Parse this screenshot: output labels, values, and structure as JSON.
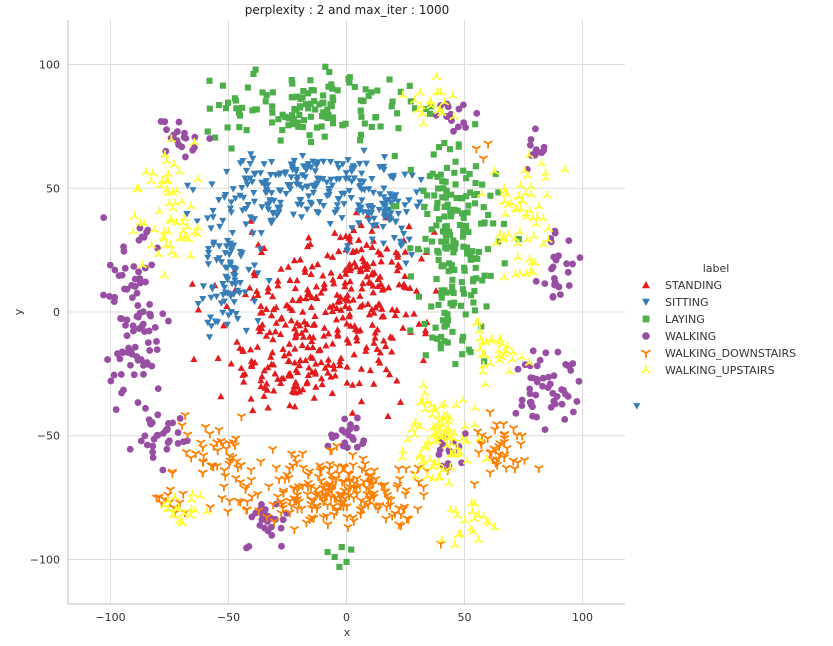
{
  "chart_data": {
    "type": "scatter",
    "title": "perplexity : 2 and max_iter : 1000",
    "xlabel": "x",
    "ylabel": "y",
    "xlim": [
      -118,
      118
    ],
    "ylim": [
      -118,
      118
    ],
    "xticks": [
      -100,
      -50,
      0,
      50,
      100
    ],
    "yticks": [
      -100,
      -50,
      0,
      50,
      100
    ],
    "xtick_labels": [
      "−100",
      "−50",
      "0",
      "50",
      "100"
    ],
    "ytick_labels": [
      "−100",
      "−50",
      "0",
      "50",
      "100"
    ],
    "grid": true,
    "legend": {
      "title": "label",
      "placement": "right",
      "entries": [
        "STANDING",
        "SITTING",
        "LAYING",
        "WALKING",
        "WALKING_DOWNSTAIRS",
        "WALKING_UPSTAIRS"
      ]
    },
    "series": [
      {
        "name": "STANDING",
        "marker": "triangle-up",
        "color": "#e41a1c",
        "clusters": [
          {
            "center": [
              -10,
              -3
            ],
            "spread": [
              38,
              28
            ],
            "n": 230
          },
          {
            "center": [
              10,
              15
            ],
            "spread": [
              20,
              20
            ],
            "n": 90
          },
          {
            "center": [
              -25,
              -25
            ],
            "spread": [
              22,
              14
            ],
            "n": 70
          }
        ],
        "outliers": []
      },
      {
        "name": "SITTING",
        "marker": "triangle-down",
        "color": "#377eb8",
        "clusters": [
          {
            "center": [
              -15,
              50
            ],
            "spread": [
              38,
              14
            ],
            "n": 200
          },
          {
            "center": [
              -50,
              15
            ],
            "spread": [
              12,
              25
            ],
            "n": 90
          },
          {
            "center": [
              15,
              40
            ],
            "spread": [
              15,
              14
            ],
            "n": 60
          }
        ],
        "outliers": [
          [
            123,
            -38
          ]
        ]
      },
      {
        "name": "LAYING",
        "marker": "square",
        "color": "#4daf4a",
        "clusters": [
          {
            "center": [
              -10,
              83
            ],
            "spread": [
              40,
              12
            ],
            "n": 130
          },
          {
            "center": [
              45,
              35
            ],
            "spread": [
              18,
              30
            ],
            "n": 150
          },
          {
            "center": [
              45,
              -5
            ],
            "spread": [
              12,
              15
            ],
            "n": 40
          }
        ],
        "outliers": [
          [
            -2,
            -95
          ],
          [
            -5,
            -99
          ],
          [
            -3,
            -103
          ],
          [
            0,
            -101
          ],
          [
            -8,
            -97
          ],
          [
            2,
            -96
          ]
        ]
      },
      {
        "name": "WALKING",
        "marker": "circle",
        "color": "#984ea3",
        "clusters": [
          {
            "center": [
              -90,
              0
            ],
            "spread": [
              12,
              35
            ],
            "n": 90
          },
          {
            "center": [
              -80,
              -50
            ],
            "spread": [
              12,
              10
            ],
            "n": 30
          },
          {
            "center": [
              -70,
              70
            ],
            "spread": [
              8,
              8
            ],
            "n": 20
          },
          {
            "center": [
              85,
              -30
            ],
            "spread": [
              15,
              15
            ],
            "n": 50
          },
          {
            "center": [
              90,
              20
            ],
            "spread": [
              8,
              15
            ],
            "n": 25
          },
          {
            "center": [
              -35,
              -85
            ],
            "spread": [
              8,
              10
            ],
            "n": 25
          },
          {
            "center": [
              0,
              -50
            ],
            "spread": [
              8,
              6
            ],
            "n": 20
          },
          {
            "center": [
              45,
              -55
            ],
            "spread": [
              6,
              8
            ],
            "n": 15
          },
          {
            "center": [
              45,
              80
            ],
            "spread": [
              7,
              7
            ],
            "n": 15
          },
          {
            "center": [
              80,
              65
            ],
            "spread": [
              6,
              7
            ],
            "n": 12
          }
        ],
        "outliers": []
      },
      {
        "name": "WALKING_DOWNSTAIRS",
        "marker": "tri-down",
        "color": "#ff7f00",
        "clusters": [
          {
            "center": [
              -5,
              -72
            ],
            "spread": [
              35,
              13
            ],
            "n": 220
          },
          {
            "center": [
              -55,
              -60
            ],
            "spread": [
              15,
              15
            ],
            "n": 50
          },
          {
            "center": [
              65,
              -55
            ],
            "spread": [
              10,
              12
            ],
            "n": 40
          },
          {
            "center": [
              -75,
              -75
            ],
            "spread": [
              6,
              6
            ],
            "n": 12
          }
        ],
        "outliers": [
          [
            60,
            68
          ],
          [
            58,
            62
          ],
          [
            55,
            66
          ]
        ]
      },
      {
        "name": "WALKING_UPSTAIRS",
        "marker": "tri-up",
        "color": "#ffff33",
        "clusters": [
          {
            "center": [
              -75,
              40
            ],
            "spread": [
              12,
              20
            ],
            "n": 60
          },
          {
            "center": [
              75,
              40
            ],
            "spread": [
              12,
              25
            ],
            "n": 60
          },
          {
            "center": [
              40,
              -50
            ],
            "spread": [
              15,
              20
            ],
            "n": 90
          },
          {
            "center": [
              35,
              85
            ],
            "spread": [
              10,
              8
            ],
            "n": 20
          },
          {
            "center": [
              -70,
              -80
            ],
            "spread": [
              8,
              8
            ],
            "n": 20
          },
          {
            "center": [
              50,
              -85
            ],
            "spread": [
              10,
              8
            ],
            "n": 20
          },
          {
            "center": [
              65,
              -15
            ],
            "spread": [
              10,
              10
            ],
            "n": 30
          }
        ],
        "outliers": []
      }
    ]
  }
}
